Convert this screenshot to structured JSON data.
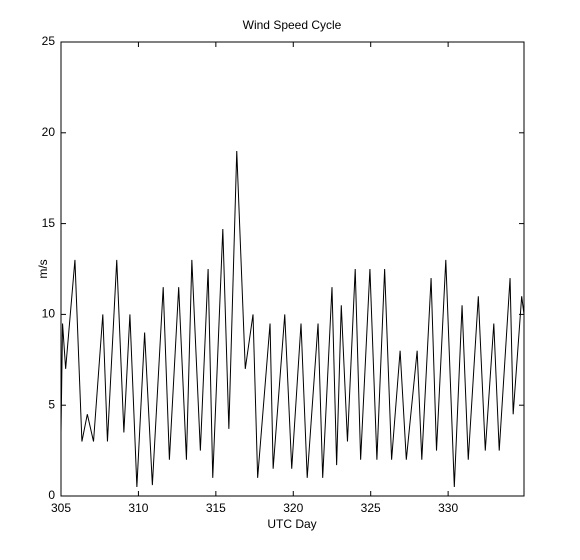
{
  "chart_data": {
    "type": "line",
    "title": "Wind Speed Cycle",
    "x_label": "UTC Day",
    "y_label": "m/s",
    "x": [
      305,
      305.1,
      305.3,
      305.9,
      306.35,
      306.7,
      307.1,
      307.7,
      308.0,
      308.6,
      309.06,
      309.45,
      309.9,
      310.4,
      310.9,
      311.6,
      312.0,
      312.6,
      313.1,
      313.45,
      314.0,
      314.5,
      314.8,
      315.45,
      315.84,
      316.35,
      316.9,
      317.4,
      317.7,
      318.5,
      318.7,
      319.45,
      319.9,
      320.5,
      320.9,
      321.6,
      321.9,
      322.5,
      322.8,
      323.1,
      323.5,
      324.0,
      324.35,
      324.95,
      325.4,
      325.9,
      326.35,
      326.9,
      327.3,
      328.0,
      328.3,
      328.9,
      329.25,
      329.85,
      330.4,
      330.9,
      331.3,
      331.95,
      332.4,
      332.95,
      333.3,
      334.0,
      334.2,
      334.75,
      334.9
    ],
    "series": [
      {
        "color": "#000000",
        "values": [
          3.5,
          9.5,
          7,
          13,
          3,
          4.5,
          3,
          10,
          3,
          13,
          3.5,
          10,
          0.5,
          9,
          0.6,
          11.5,
          2,
          11.5,
          2,
          13,
          2.5,
          12.5,
          1,
          14.7,
          3.7,
          19,
          7,
          10,
          1,
          9.5,
          1.5,
          10,
          1.5,
          9.5,
          1,
          9.5,
          1,
          11.5,
          1.7,
          10.5,
          3,
          12.5,
          2,
          12.5,
          2,
          12.5,
          2,
          8,
          2,
          8,
          2,
          12,
          2.5,
          13,
          0.5,
          10.5,
          2,
          11,
          2.5,
          9.5,
          2.5,
          12,
          4.5,
          11,
          10
        ]
      }
    ],
    "xlim": [
      305,
      334.9
    ],
    "xticks": [
      305,
      310,
      315,
      320,
      325,
      330
    ],
    "ylim": [
      0,
      25
    ],
    "yticks": [
      0,
      5,
      10,
      15,
      20,
      25
    ]
  }
}
